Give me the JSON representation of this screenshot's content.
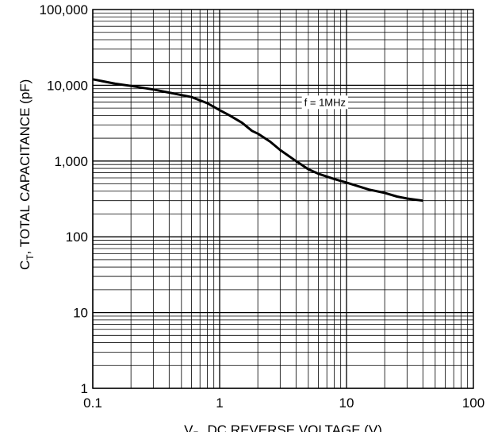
{
  "chart_data": {
    "type": "line",
    "x_scale": "log",
    "y_scale": "log",
    "xlim": [
      0.1,
      100
    ],
    "ylim": [
      1,
      100000
    ],
    "grid": true,
    "x_ticks": [
      "0.1",
      "1",
      "10",
      "100"
    ],
    "y_ticks": [
      "1",
      "10",
      "100",
      "1,000",
      "10,000",
      "100,000"
    ],
    "xlabel_main": "V",
    "xlabel_sub": "R",
    "xlabel_rest": ", DC REVERSE VOLTAGE (V)",
    "ylabel_main": "C",
    "ylabel_sub": "T",
    "ylabel_rest": ", TOTAL CAPACITANCE (pF)",
    "annotation": "f = 1MHz",
    "series": [
      {
        "x": [
          0.1,
          0.15,
          0.2,
          0.3,
          0.4,
          0.6,
          0.8,
          1.0,
          1.2,
          1.5,
          1.8,
          2,
          2.5,
          3,
          4,
          5,
          6,
          8,
          10,
          15,
          20,
          25,
          30,
          40
        ],
        "y": [
          12000,
          10500,
          9800,
          8800,
          8000,
          7000,
          5800,
          4700,
          4000,
          3200,
          2500,
          2300,
          1800,
          1400,
          1000,
          780,
          680,
          580,
          520,
          420,
          380,
          340,
          320,
          300
        ]
      }
    ]
  }
}
